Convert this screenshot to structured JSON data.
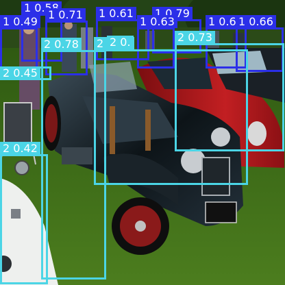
{
  "image": {
    "description_tags": [
      "vintage car show",
      "black roadster",
      "red sports car",
      "white car",
      "spectators",
      "grass field",
      "trees"
    ]
  },
  "colors": {
    "person_box": "#2b2fe8",
    "car_box": "#4bd5e6",
    "grass": "#3f6a1a",
    "sky": "#d8ecf5"
  },
  "detections": [
    {
      "label": "1 0.58",
      "class": "person"
    },
    {
      "label": "1 0.49",
      "class": "person"
    },
    {
      "label": "1 0.71",
      "class": "person"
    },
    {
      "label": "1 0.61",
      "class": "person"
    },
    {
      "label": "1 0.79",
      "class": "person"
    },
    {
      "label": "1 0.63",
      "class": "person"
    },
    {
      "label": "1 0.61",
      "class": "person"
    },
    {
      "label": "1 0.66",
      "class": "person"
    },
    {
      "label": "2 0.78",
      "class": "car"
    },
    {
      "label": "2 0.60",
      "class": "car"
    },
    {
      "label": "2 0.73",
      "class": "car"
    },
    {
      "label": "2 0.45",
      "class": "car"
    },
    {
      "label": "2 0.42",
      "class": "car"
    },
    {
      "label": "2 0.",
      "class": "car"
    }
  ]
}
